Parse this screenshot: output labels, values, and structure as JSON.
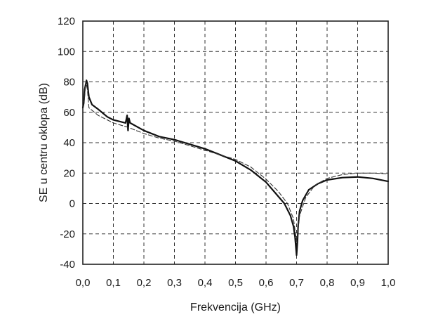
{
  "chart_data": {
    "type": "line",
    "title": "",
    "xlabel": "Frekvencija (GHz)",
    "ylabel": "SE u centru oklopa (dB)",
    "xlim": [
      0.0,
      1.0
    ],
    "ylim": [
      -40,
      120
    ],
    "x_ticks": [
      "0,0",
      "0,1",
      "0,2",
      "0,3",
      "0,4",
      "0,5",
      "0,6",
      "0,7",
      "0,8",
      "0,9",
      "1,0"
    ],
    "x_tick_values": [
      0.0,
      0.1,
      0.2,
      0.3,
      0.4,
      0.5,
      0.6,
      0.7,
      0.8,
      0.9,
      1.0
    ],
    "y_ticks": [
      "-40",
      "-20",
      "0",
      "20",
      "40",
      "60",
      "80",
      "100",
      "120"
    ],
    "y_tick_values": [
      -40,
      -20,
      0,
      20,
      40,
      60,
      80,
      100,
      120
    ],
    "grid": true,
    "legend": "none",
    "series": [
      {
        "style": "solid",
        "color": "#111111",
        "x": [
          0.0,
          0.003,
          0.006,
          0.009,
          0.012,
          0.015,
          0.02,
          0.03,
          0.05,
          0.08,
          0.1,
          0.14,
          0.145,
          0.148,
          0.151,
          0.155,
          0.2,
          0.25,
          0.3,
          0.35,
          0.4,
          0.45,
          0.5,
          0.55,
          0.6,
          0.63,
          0.66,
          0.68,
          0.69,
          0.695,
          0.7,
          0.703,
          0.705,
          0.71,
          0.72,
          0.74,
          0.77,
          0.8,
          0.85,
          0.9,
          0.95,
          1.0
        ],
        "y": [
          63,
          66,
          75,
          78,
          81,
          79,
          70,
          65,
          62,
          57,
          55,
          53,
          58,
          48,
          56,
          53,
          48,
          44,
          42,
          39,
          36,
          32,
          28,
          22,
          14,
          7,
          0,
          -8,
          -15,
          -22,
          -34,
          -25,
          -15,
          -5,
          2,
          9,
          13,
          15.5,
          17,
          17.5,
          16.5,
          14.5
        ]
      },
      {
        "style": "dashed",
        "color": "#333333",
        "x": [
          0.0,
          0.005,
          0.01,
          0.015,
          0.02,
          0.05,
          0.1,
          0.15,
          0.2,
          0.25,
          0.3,
          0.35,
          0.4,
          0.45,
          0.5,
          0.55,
          0.6,
          0.64,
          0.67,
          0.69,
          0.7,
          0.71,
          0.73,
          0.76,
          0.8,
          0.85,
          0.9,
          0.95,
          1.0
        ],
        "y": [
          66,
          68,
          80,
          75,
          63,
          58,
          53,
          50,
          46,
          43,
          41,
          38,
          35,
          32,
          29,
          24,
          16,
          8,
          0,
          -10,
          -25,
          -8,
          4,
          12,
          16.5,
          19,
          20,
          20,
          19.5
        ]
      }
    ]
  }
}
